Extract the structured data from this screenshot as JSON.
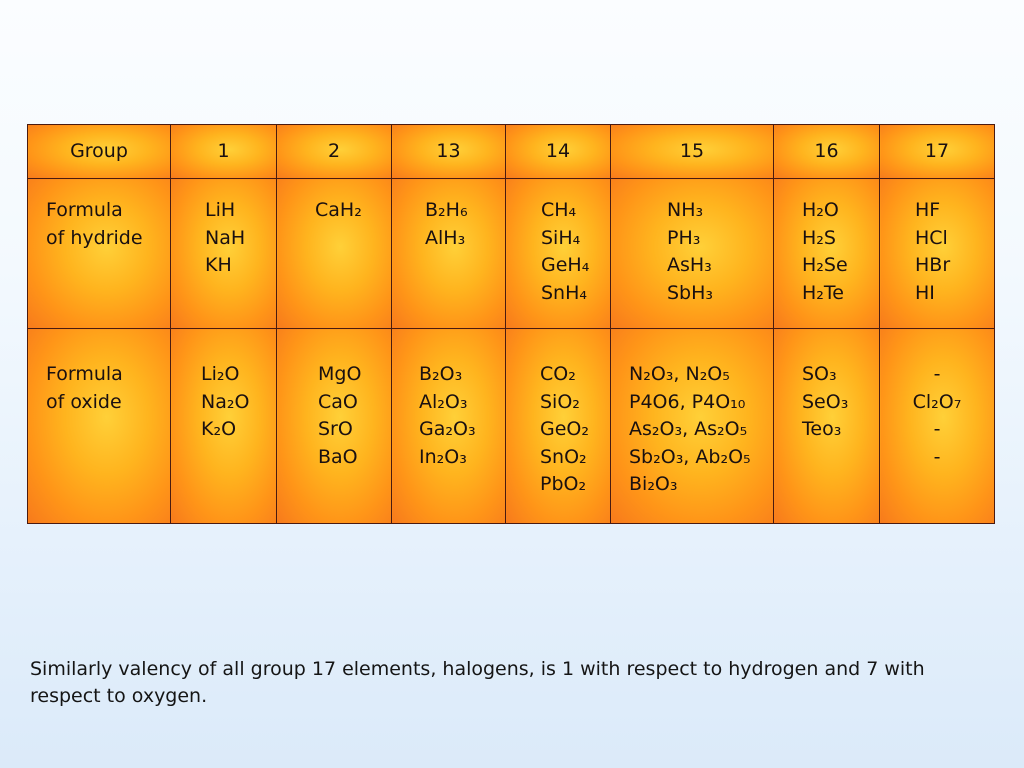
{
  "table": {
    "header": {
      "label": "Group",
      "groups": [
        "1",
        "2",
        "13",
        "14",
        "15",
        "16",
        "17"
      ]
    },
    "rows": [
      {
        "label_lines": [
          "Formula",
          "of hydride"
        ],
        "cells": [
          [
            "LiH",
            "NaH",
            "KH"
          ],
          [
            "CaH₂"
          ],
          [
            "B₂H₆",
            "AlH₃"
          ],
          [
            "CH₄",
            "SiH₄",
            "GeH₄",
            "SnH₄"
          ],
          [
            "NH₃",
            "PH₃",
            "AsH₃",
            "SbH₃"
          ],
          [
            "H₂O",
            "H₂S",
            "H₂Se",
            "H₂Te"
          ],
          [
            "HF",
            "HCl",
            "HBr",
            "HI"
          ]
        ]
      },
      {
        "label_lines": [
          "Formula",
          "of oxide"
        ],
        "cells": [
          [
            "Li₂O",
            "Na₂O",
            "K₂O"
          ],
          [
            "MgO",
            "CaO",
            "SrO",
            "BaO"
          ],
          [
            "B₂O₃",
            "Al₂O₃",
            "Ga₂O₃",
            "In₂O₃"
          ],
          [
            "CO₂",
            "SiO₂",
            "GeO₂",
            "SnO₂",
            "PbO₂"
          ],
          [
            "N₂O₃, N₂O₅",
            "P4O6, P4O₁₀",
            "As₂O₃, As₂O₅",
            "Sb₂O₃, Ab₂O₅",
            "Bi₂O₃"
          ],
          [
            "SO₃",
            "SeO₃",
            "Teo₃"
          ],
          [
            "-",
            "Cl₂O₇",
            "-",
            "-"
          ]
        ]
      }
    ]
  },
  "footer": {
    "text": "Similarly valency of all group 17 elements, halogens, is 1 with respect to hydrogen and 7 with respect to oxygen."
  },
  "colors": {
    "cell_center": "#ffd038",
    "cell_edge": "#f77a1c",
    "border": "#4a1a10",
    "background_top": "#fbfdff",
    "background_bottom": "#dbeaf9"
  }
}
